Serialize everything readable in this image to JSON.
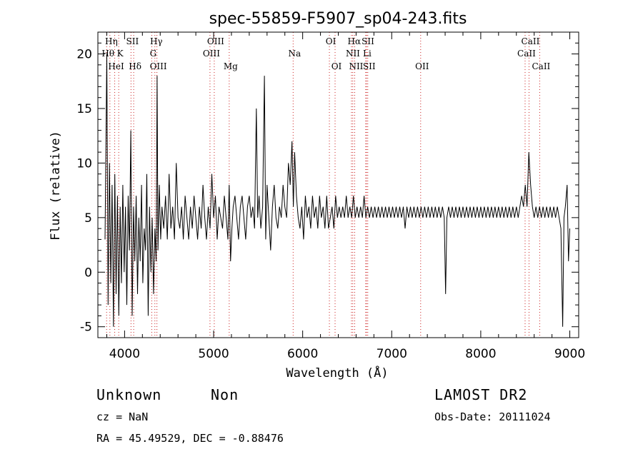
{
  "chart_data": {
    "type": "line",
    "title": "spec-55859-F5907_sp04-243.fits",
    "xlabel": "Wavelength (Å)",
    "ylabel": "Flux (relative)",
    "xlim": [
      3700,
      9100
    ],
    "ylim": [
      -6,
      22
    ],
    "xticks": [
      4000,
      5000,
      6000,
      7000,
      8000,
      9000
    ],
    "yticks": [
      -5,
      0,
      5,
      10,
      15,
      20
    ],
    "grid": false,
    "line_color": "#000000",
    "marker_color": "#cc2222",
    "spectral_lines": [
      {
        "label": "Hη",
        "x": 3835,
        "row": 0
      },
      {
        "label": "Hθ",
        "x": 3798,
        "row": 1
      },
      {
        "label": "K",
        "x": 3934,
        "row": 1
      },
      {
        "label": "HeI",
        "x": 3889,
        "row": 2
      },
      {
        "label": "SII",
        "x": 4072,
        "row": 0
      },
      {
        "label": "Hδ",
        "x": 4102,
        "row": 2
      },
      {
        "label": "Hγ",
        "x": 4340,
        "row": 0
      },
      {
        "label": "G",
        "x": 4305,
        "row": 1
      },
      {
        "label": "OIII",
        "x": 4363,
        "row": 2
      },
      {
        "label": "OIII",
        "x": 5007,
        "row": 0
      },
      {
        "label": "OIII",
        "x": 4959,
        "row": 1
      },
      {
        "label": "Mg",
        "x": 5175,
        "row": 2
      },
      {
        "label": "Na",
        "x": 5893,
        "row": 1
      },
      {
        "label": "OI",
        "x": 6300,
        "row": 0
      },
      {
        "label": "OI",
        "x": 6364,
        "row": 2
      },
      {
        "label": "Hα",
        "x": 6563,
        "row": 0
      },
      {
        "label": "SII",
        "x": 6717,
        "row": 0
      },
      {
        "label": "NII",
        "x": 6548,
        "row": 1
      },
      {
        "label": "Li",
        "x": 6708,
        "row": 1
      },
      {
        "label": "NII",
        "x": 6584,
        "row": 2
      },
      {
        "label": "SII",
        "x": 6731,
        "row": 2
      },
      {
        "label": "OII",
        "x": 7325,
        "row": 2
      },
      {
        "label": "CaII",
        "x": 8542,
        "row": 0
      },
      {
        "label": "CaII",
        "x": 8498,
        "row": 1
      },
      {
        "label": "CaII",
        "x": 8662,
        "row": 2
      }
    ],
    "spectrum": [
      [
        3780,
        3
      ],
      [
        3800,
        20
      ],
      [
        3815,
        -3
      ],
      [
        3830,
        10
      ],
      [
        3845,
        -1
      ],
      [
        3860,
        8
      ],
      [
        3875,
        -5
      ],
      [
        3890,
        9
      ],
      [
        3905,
        -2
      ],
      [
        3920,
        7
      ],
      [
        3935,
        -4
      ],
      [
        3950,
        6
      ],
      [
        3965,
        -1
      ],
      [
        3980,
        8
      ],
      [
        3995,
        0
      ],
      [
        4010,
        6
      ],
      [
        4025,
        -3
      ],
      [
        4040,
        7
      ],
      [
        4055,
        2
      ],
      [
        4070,
        13
      ],
      [
        4085,
        -4
      ],
      [
        4100,
        6
      ],
      [
        4115,
        1
      ],
      [
        4130,
        7
      ],
      [
        4145,
        -2
      ],
      [
        4160,
        5
      ],
      [
        4175,
        1
      ],
      [
        4190,
        8
      ],
      [
        4205,
        -1
      ],
      [
        4220,
        4
      ],
      [
        4235,
        2
      ],
      [
        4250,
        9
      ],
      [
        4265,
        -4
      ],
      [
        4280,
        6
      ],
      [
        4295,
        0
      ],
      [
        4310,
        5
      ],
      [
        4325,
        -2
      ],
      [
        4340,
        4
      ],
      [
        4355,
        1
      ],
      [
        4365,
        18
      ],
      [
        4375,
        2
      ],
      [
        4390,
        8
      ],
      [
        4405,
        3
      ],
      [
        4420,
        6
      ],
      [
        4440,
        4
      ],
      [
        4460,
        7
      ],
      [
        4480,
        3
      ],
      [
        4500,
        9
      ],
      [
        4520,
        4
      ],
      [
        4540,
        6
      ],
      [
        4560,
        3
      ],
      [
        4580,
        10
      ],
      [
        4600,
        5
      ],
      [
        4620,
        4
      ],
      [
        4640,
        6
      ],
      [
        4660,
        3
      ],
      [
        4680,
        7
      ],
      [
        4700,
        5
      ],
      [
        4720,
        3
      ],
      [
        4740,
        6
      ],
      [
        4760,
        4
      ],
      [
        4780,
        7
      ],
      [
        4800,
        5
      ],
      [
        4820,
        3
      ],
      [
        4840,
        6
      ],
      [
        4860,
        4
      ],
      [
        4880,
        8
      ],
      [
        4900,
        5
      ],
      [
        4920,
        3
      ],
      [
        4940,
        6
      ],
      [
        4960,
        4
      ],
      [
        4980,
        9
      ],
      [
        5000,
        5
      ],
      [
        5020,
        7
      ],
      [
        5040,
        3
      ],
      [
        5060,
        6
      ],
      [
        5080,
        5
      ],
      [
        5100,
        4
      ],
      [
        5120,
        7
      ],
      [
        5140,
        5
      ],
      [
        5160,
        3
      ],
      [
        5175,
        8
      ],
      [
        5190,
        1
      ],
      [
        5205,
        4
      ],
      [
        5220,
        6
      ],
      [
        5240,
        7
      ],
      [
        5260,
        5
      ],
      [
        5280,
        3
      ],
      [
        5300,
        6
      ],
      [
        5320,
        7
      ],
      [
        5340,
        5
      ],
      [
        5360,
        3
      ],
      [
        5380,
        6
      ],
      [
        5400,
        7
      ],
      [
        5420,
        5
      ],
      [
        5440,
        6
      ],
      [
        5460,
        4
      ],
      [
        5480,
        15
      ],
      [
        5495,
        5
      ],
      [
        5510,
        7
      ],
      [
        5530,
        4
      ],
      [
        5550,
        6
      ],
      [
        5570,
        18
      ],
      [
        5585,
        3
      ],
      [
        5600,
        8
      ],
      [
        5620,
        5
      ],
      [
        5640,
        2
      ],
      [
        5660,
        6
      ],
      [
        5680,
        8
      ],
      [
        5700,
        5
      ],
      [
        5720,
        4
      ],
      [
        5740,
        6
      ],
      [
        5760,
        5
      ],
      [
        5780,
        8
      ],
      [
        5800,
        6
      ],
      [
        5820,
        5
      ],
      [
        5840,
        10
      ],
      [
        5860,
        8
      ],
      [
        5880,
        12
      ],
      [
        5895,
        6
      ],
      [
        5910,
        11
      ],
      [
        5930,
        7
      ],
      [
        5950,
        5
      ],
      [
        5970,
        4
      ],
      [
        5990,
        6
      ],
      [
        6010,
        3
      ],
      [
        6030,
        7
      ],
      [
        6050,
        5
      ],
      [
        6070,
        6
      ],
      [
        6090,
        4
      ],
      [
        6110,
        7
      ],
      [
        6130,
        5
      ],
      [
        6150,
        6
      ],
      [
        6170,
        4
      ],
      [
        6190,
        7
      ],
      [
        6210,
        5
      ],
      [
        6230,
        6
      ],
      [
        6250,
        4
      ],
      [
        6270,
        7
      ],
      [
        6290,
        4
      ],
      [
        6310,
        5
      ],
      [
        6330,
        6
      ],
      [
        6350,
        4
      ],
      [
        6370,
        7
      ],
      [
        6390,
        5
      ],
      [
        6410,
        6
      ],
      [
        6430,
        5
      ],
      [
        6450,
        6
      ],
      [
        6470,
        5
      ],
      [
        6490,
        7
      ],
      [
        6510,
        5
      ],
      [
        6530,
        6
      ],
      [
        6550,
        5
      ],
      [
        6570,
        7
      ],
      [
        6590,
        5
      ],
      [
        6610,
        6
      ],
      [
        6630,
        5
      ],
      [
        6650,
        6
      ],
      [
        6670,
        5
      ],
      [
        6690,
        7
      ],
      [
        6710,
        5
      ],
      [
        6730,
        6
      ],
      [
        6750,
        5
      ],
      [
        6770,
        6
      ],
      [
        6790,
        5
      ],
      [
        6810,
        6
      ],
      [
        6830,
        5
      ],
      [
        6850,
        6
      ],
      [
        6870,
        5
      ],
      [
        6890,
        6
      ],
      [
        6910,
        5
      ],
      [
        6930,
        6
      ],
      [
        6950,
        5
      ],
      [
        6970,
        6
      ],
      [
        6990,
        5
      ],
      [
        7010,
        6
      ],
      [
        7030,
        5
      ],
      [
        7050,
        6
      ],
      [
        7070,
        5
      ],
      [
        7090,
        6
      ],
      [
        7110,
        5
      ],
      [
        7130,
        6
      ],
      [
        7150,
        4
      ],
      [
        7170,
        6
      ],
      [
        7190,
        5
      ],
      [
        7210,
        6
      ],
      [
        7230,
        5
      ],
      [
        7250,
        6
      ],
      [
        7270,
        5
      ],
      [
        7290,
        6
      ],
      [
        7310,
        5
      ],
      [
        7330,
        6
      ],
      [
        7350,
        5
      ],
      [
        7370,
        6
      ],
      [
        7390,
        5
      ],
      [
        7410,
        6
      ],
      [
        7430,
        5
      ],
      [
        7450,
        6
      ],
      [
        7470,
        5
      ],
      [
        7490,
        6
      ],
      [
        7510,
        5
      ],
      [
        7530,
        6
      ],
      [
        7550,
        5
      ],
      [
        7570,
        6
      ],
      [
        7590,
        5
      ],
      [
        7605,
        -2
      ],
      [
        7620,
        5
      ],
      [
        7640,
        6
      ],
      [
        7660,
        5
      ],
      [
        7680,
        6
      ],
      [
        7700,
        5
      ],
      [
        7720,
        6
      ],
      [
        7740,
        5
      ],
      [
        7760,
        6
      ],
      [
        7780,
        5
      ],
      [
        7800,
        6
      ],
      [
        7820,
        5
      ],
      [
        7840,
        6
      ],
      [
        7860,
        5
      ],
      [
        7880,
        6
      ],
      [
        7900,
        5
      ],
      [
        7920,
        6
      ],
      [
        7940,
        5
      ],
      [
        7960,
        6
      ],
      [
        7980,
        5
      ],
      [
        8000,
        6
      ],
      [
        8020,
        5
      ],
      [
        8040,
        6
      ],
      [
        8060,
        5
      ],
      [
        8080,
        6
      ],
      [
        8100,
        5
      ],
      [
        8120,
        6
      ],
      [
        8140,
        5
      ],
      [
        8160,
        6
      ],
      [
        8180,
        5
      ],
      [
        8200,
        6
      ],
      [
        8220,
        5
      ],
      [
        8240,
        6
      ],
      [
        8260,
        5
      ],
      [
        8280,
        6
      ],
      [
        8300,
        5
      ],
      [
        8320,
        6
      ],
      [
        8340,
        5
      ],
      [
        8360,
        6
      ],
      [
        8380,
        5
      ],
      [
        8400,
        6
      ],
      [
        8420,
        5
      ],
      [
        8440,
        6
      ],
      [
        8460,
        7
      ],
      [
        8480,
        6
      ],
      [
        8500,
        8
      ],
      [
        8520,
        6
      ],
      [
        8540,
        11
      ],
      [
        8560,
        8
      ],
      [
        8580,
        6
      ],
      [
        8600,
        5
      ],
      [
        8620,
        6
      ],
      [
        8640,
        5
      ],
      [
        8660,
        6
      ],
      [
        8680,
        5
      ],
      [
        8700,
        6
      ],
      [
        8720,
        5
      ],
      [
        8740,
        6
      ],
      [
        8760,
        5
      ],
      [
        8780,
        6
      ],
      [
        8800,
        5
      ],
      [
        8820,
        6
      ],
      [
        8840,
        5
      ],
      [
        8860,
        6
      ],
      [
        8880,
        5
      ],
      [
        8900,
        4
      ],
      [
        8920,
        -5
      ],
      [
        8935,
        5
      ],
      [
        8950,
        6
      ],
      [
        8970,
        8
      ],
      [
        8985,
        1
      ],
      [
        9000,
        4
      ]
    ]
  },
  "info": {
    "object_class": "Unknown",
    "subclass": "Non",
    "cz": "cz = NaN",
    "coords": "RA =  45.49529, DEC =  -0.88476",
    "survey": "LAMOST DR2",
    "obs_date": "Obs-Date: 20111024"
  }
}
